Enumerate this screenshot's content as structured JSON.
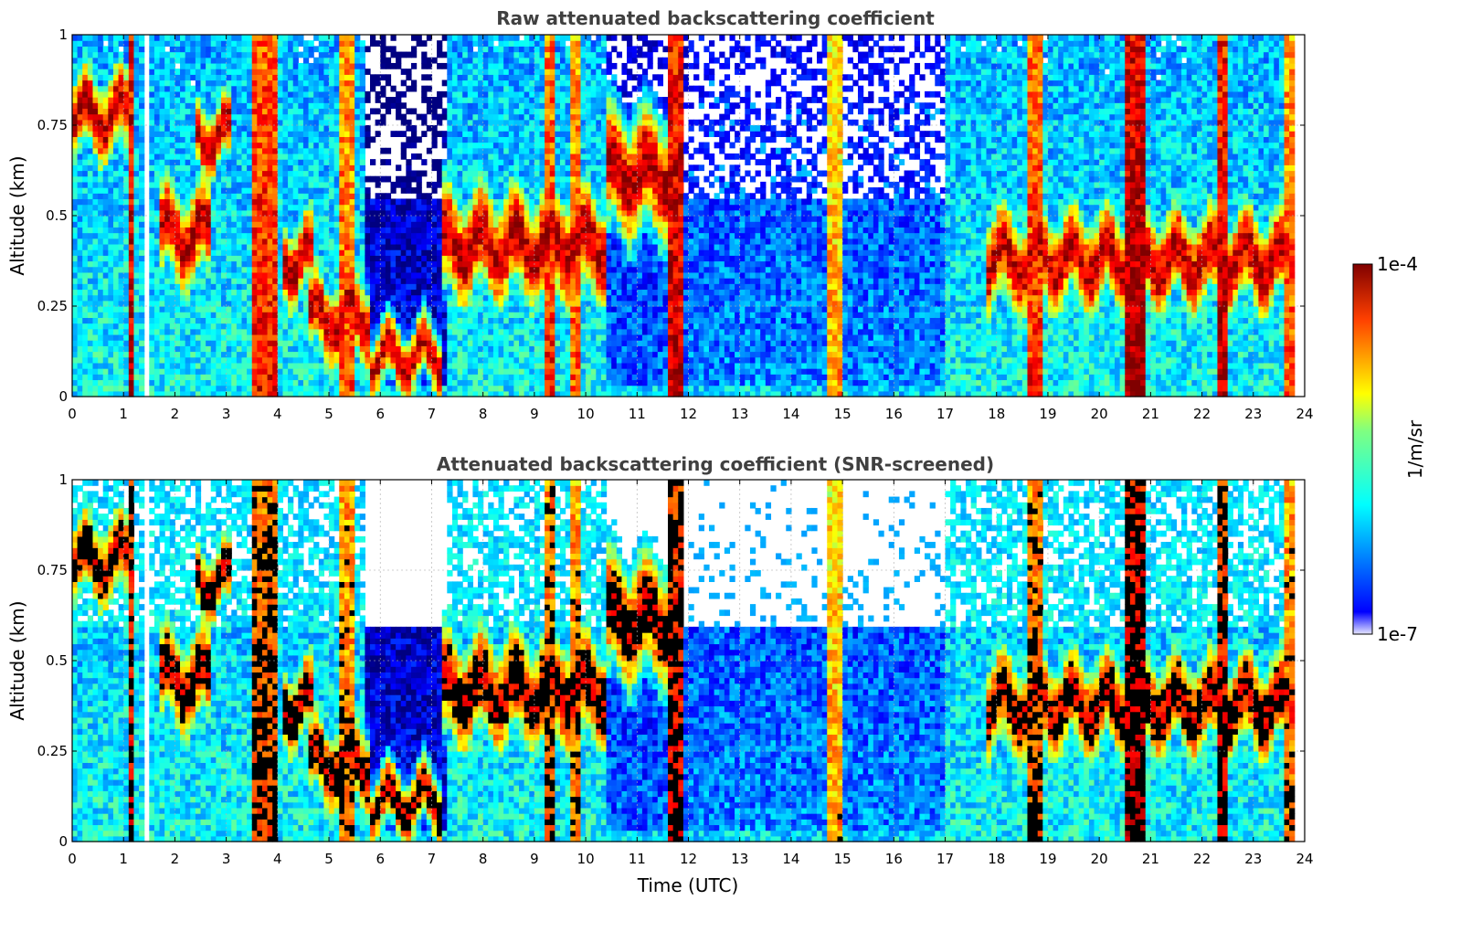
{
  "chart_data": [
    {
      "type": "heatmap",
      "title": "Raw attenuated backscattering coefficient",
      "xlabel": "",
      "ylabel": "Altitude (km)",
      "xlim": [
        0,
        24
      ],
      "ylim": [
        0,
        1
      ],
      "x_ticks": [
        "0",
        "1",
        "2",
        "3",
        "4",
        "5",
        "6",
        "7",
        "8",
        "9",
        "10",
        "11",
        "12",
        "13",
        "14",
        "15",
        "16",
        "17",
        "18",
        "19",
        "20",
        "21",
        "22",
        "23",
        "24"
      ],
      "y_ticks": [
        "0",
        "0.25",
        "0.5",
        "0.75",
        "1"
      ],
      "grid": true,
      "screened": false
    },
    {
      "type": "heatmap",
      "title": "Attenuated backscattering coefficient (SNR-screened)",
      "xlabel": "Time (UTC)",
      "ylabel": "Altitude (km)",
      "xlim": [
        0,
        24
      ],
      "ylim": [
        0,
        1
      ],
      "x_ticks": [
        "0",
        "1",
        "2",
        "3",
        "4",
        "5",
        "6",
        "7",
        "8",
        "9",
        "10",
        "11",
        "12",
        "13",
        "14",
        "15",
        "16",
        "17",
        "18",
        "19",
        "20",
        "21",
        "22",
        "23",
        "24"
      ],
      "y_ticks": [
        "0",
        "0.25",
        "0.5",
        "0.75",
        "1"
      ],
      "grid": true,
      "screened": true
    }
  ],
  "colorbar": {
    "max_label": "1e-4",
    "min_label": "1e-7",
    "unit_label": "1/m/sr",
    "colormap": "jet"
  },
  "cloud_layers": [
    {
      "t0": 0.0,
      "t1": 1.2,
      "h": 0.78,
      "s": 0.12
    },
    {
      "t0": 1.7,
      "t1": 2.7,
      "h": 0.45,
      "s": 0.14
    },
    {
      "t0": 2.4,
      "t1": 3.1,
      "h": 0.72,
      "s": 0.1
    },
    {
      "t0": 4.1,
      "t1": 4.7,
      "h": 0.38,
      "s": 0.12
    },
    {
      "t0": 4.6,
      "t1": 5.8,
      "h": 0.22,
      "s": 0.12
    },
    {
      "t0": 5.8,
      "t1": 7.2,
      "h": 0.11,
      "s": 0.09
    },
    {
      "t0": 7.2,
      "t1": 10.4,
      "h": 0.42,
      "s": 0.16
    },
    {
      "t0": 10.4,
      "t1": 11.9,
      "h": 0.62,
      "s": 0.18
    },
    {
      "t0": 17.8,
      "t1": 23.8,
      "h": 0.38,
      "s": 0.14
    }
  ],
  "column_features": [
    {
      "t0": 1.05,
      "t1": 1.2,
      "level": 0.95
    },
    {
      "t0": 3.5,
      "t1": 3.95,
      "level": 0.88
    },
    {
      "t0": 5.2,
      "t1": 5.45,
      "level": 0.8
    },
    {
      "t0": 9.2,
      "t1": 9.4,
      "level": 0.85
    },
    {
      "t0": 9.7,
      "t1": 9.85,
      "level": 0.8
    },
    {
      "t0": 11.65,
      "t1": 11.9,
      "level": 0.95
    },
    {
      "t0": 14.75,
      "t1": 15.0,
      "level": 0.72
    },
    {
      "t0": 18.6,
      "t1": 18.9,
      "level": 0.85
    },
    {
      "t0": 20.5,
      "t1": 20.9,
      "level": 1.0
    },
    {
      "t0": 22.3,
      "t1": 22.5,
      "level": 0.95
    },
    {
      "t0": 23.6,
      "t1": 23.75,
      "level": 0.8
    }
  ],
  "clear_regions": [
    {
      "t0": 1.38,
      "t1": 1.48
    },
    {
      "t0": 23.8,
      "t1": 24.0
    }
  ]
}
